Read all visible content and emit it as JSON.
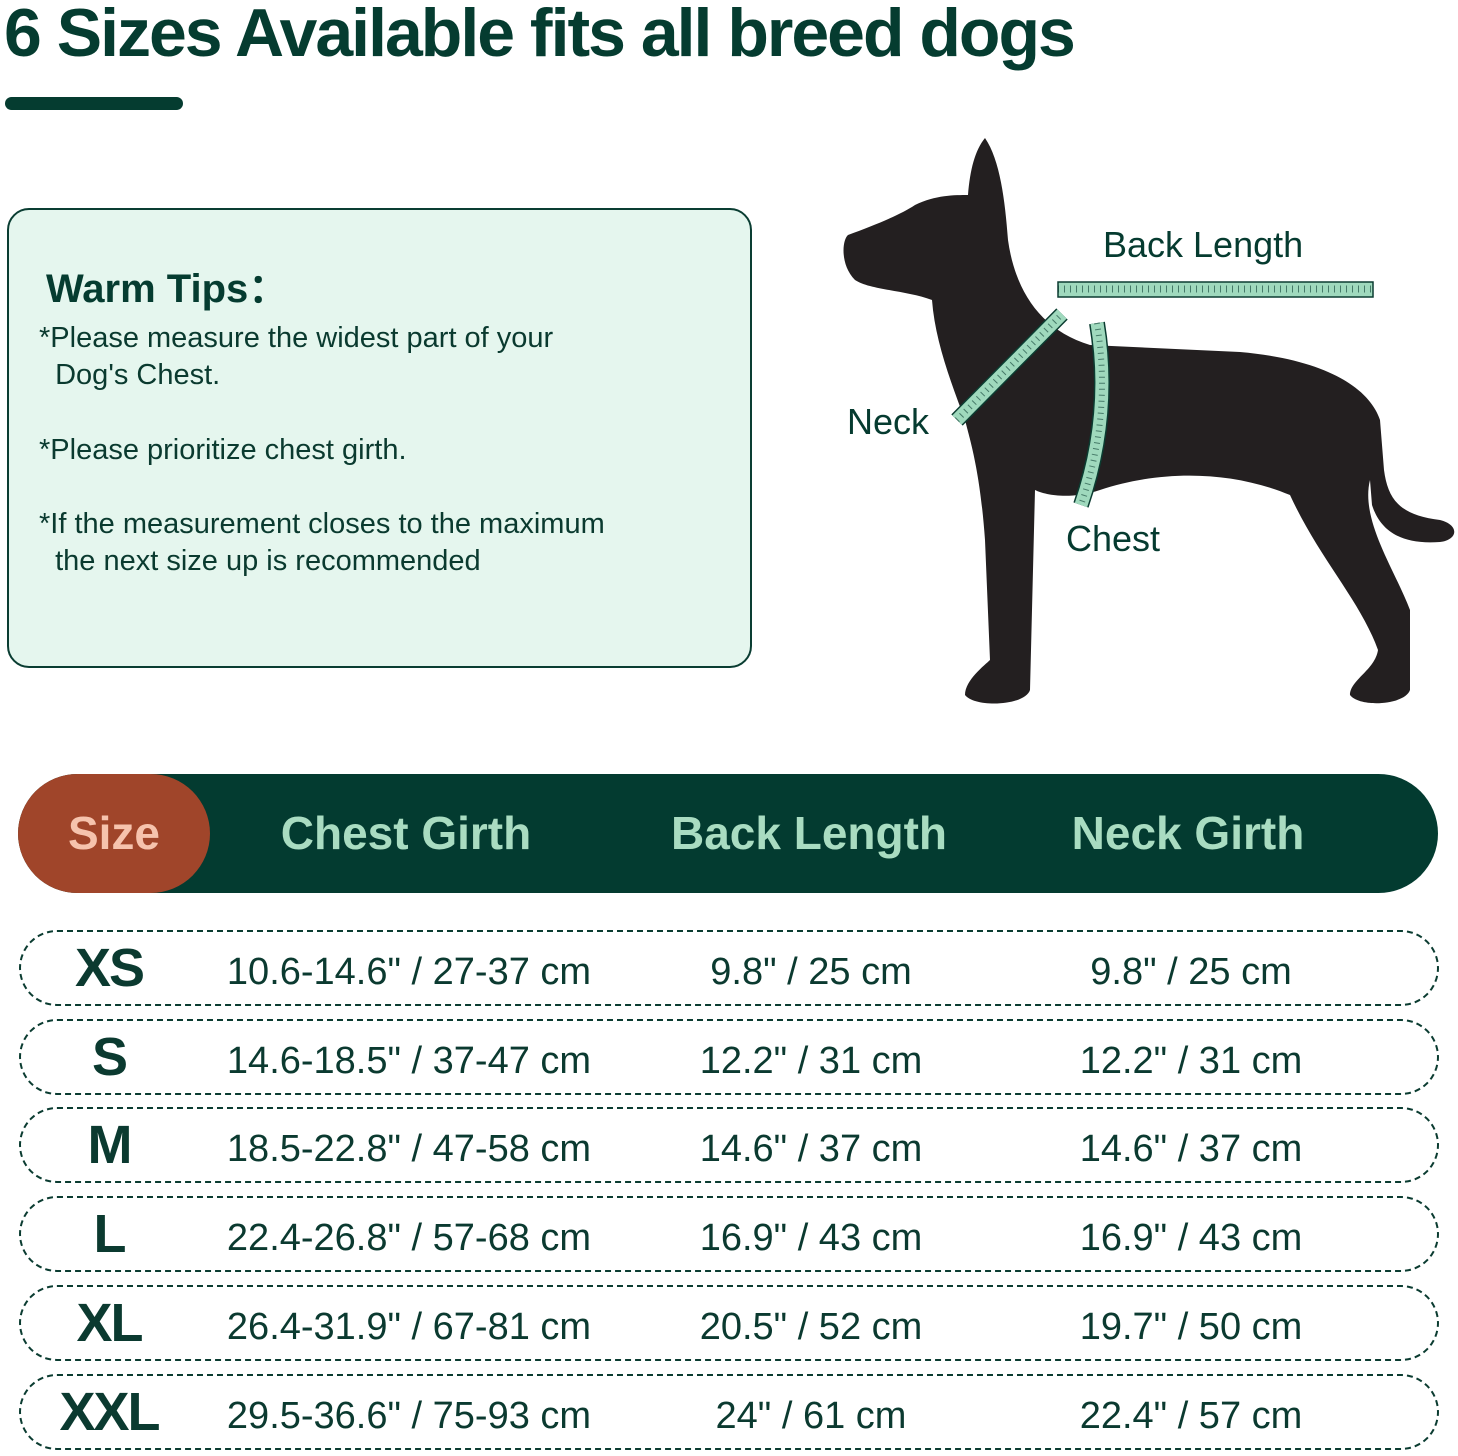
{
  "title": "6 Sizes Available fits all breed dogs",
  "tips": {
    "heading": "Warm Tips：",
    "items": [
      "*Please measure the widest part of your\n  Dog's Chest.",
      "*Please prioritize chest girth.",
      "*If the measurement closes to the maximum\n  the next size up is recommended"
    ]
  },
  "diagram": {
    "back_length_label": "Back Length",
    "neck_label": "Neck",
    "chest_label": "Chest"
  },
  "colors": {
    "dark_green": "#053c30",
    "mint": "#9fd9bd",
    "rust": "#a0452a",
    "tips_bg": "#e5f6ee",
    "dog": "#231f20"
  },
  "table": {
    "headers": [
      "Size",
      "Chest Girth",
      "Back Length",
      "Neck Girth"
    ],
    "rows": [
      {
        "size": "XS",
        "chest": "10.6-14.6\" / 27-37 cm",
        "back": "9.8\" / 25 cm",
        "neck": "9.8\" / 25 cm"
      },
      {
        "size": "S",
        "chest": "14.6-18.5\" / 37-47 cm",
        "back": "12.2\" / 31 cm",
        "neck": "12.2\" / 31 cm"
      },
      {
        "size": "M",
        "chest": "18.5-22.8\" / 47-58 cm",
        "back": "14.6\" / 37 cm",
        "neck": "14.6\" / 37 cm"
      },
      {
        "size": "L",
        "chest": "22.4-26.8\" / 57-68 cm",
        "back": "16.9\" / 43 cm",
        "neck": "16.9\" / 43 cm"
      },
      {
        "size": "XL",
        "chest": "26.4-31.9\" / 67-81 cm",
        "back": "20.5\" / 52 cm",
        "neck": "19.7\" / 50 cm"
      },
      {
        "size": "XXL",
        "chest": "29.5-36.6\" / 75-93 cm",
        "back": "24\" / 61 cm",
        "neck": "22.4\" / 57 cm"
      }
    ]
  }
}
